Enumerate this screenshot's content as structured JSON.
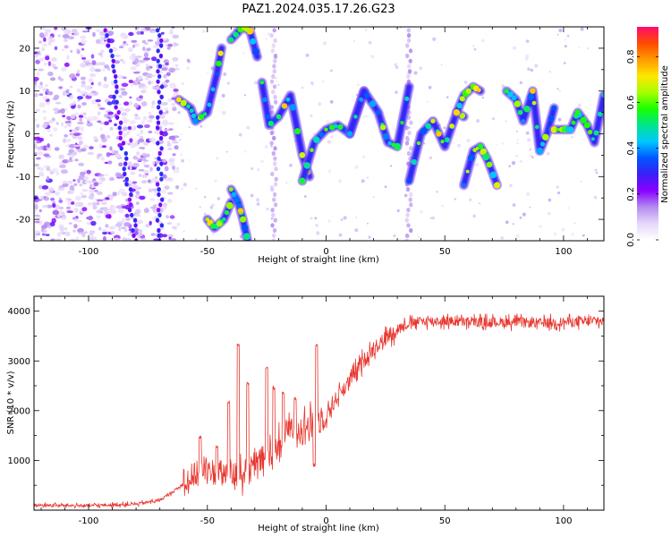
{
  "title": "PAZ1.2024.035.17.26.G23",
  "chart_data": [
    {
      "type": "heatmap",
      "xlabel": "Height of straight line (km)",
      "ylabel": "Frequency (Hz)",
      "xlim": [
        -123,
        117
      ],
      "ylim": [
        -25,
        25
      ],
      "xticks": [
        -100,
        -50,
        0,
        50,
        100
      ],
      "xtick_labels": [
        "-100",
        "-50",
        "0",
        "50",
        "100"
      ],
      "yticks": [
        -20,
        -10,
        0,
        10,
        20
      ],
      "ytick_labels": [
        "-20",
        "-10",
        "0",
        "10",
        "20"
      ],
      "colorbar": {
        "label": "Normalized spectral amplitude",
        "range": [
          0,
          0.93
        ],
        "ticks": [
          0.0,
          0.2,
          0.4,
          0.6,
          0.8
        ],
        "tick_labels": [
          "0.0",
          "0.2",
          "0.4",
          "0.6",
          "0.8"
        ],
        "colormap": [
          "#ffffff",
          "#e6d7fa",
          "#b28cf0",
          "#8a00ff",
          "#3a1ff5",
          "#0057ff",
          "#00c8ff",
          "#00e68c",
          "#19ff00",
          "#a6ff00",
          "#ffe600",
          "#ff9a00",
          "#ff4b00",
          "#ff0a6e"
        ]
      },
      "ridges": [
        {
          "x": [
            -62,
            -57,
            -55,
            -50,
            -46,
            -44
          ],
          "y": [
            8,
            6,
            3,
            5,
            14,
            20
          ]
        },
        {
          "x": [
            -40,
            -35,
            -32,
            -29
          ],
          "y": [
            22,
            25,
            24,
            18
          ]
        },
        {
          "x": [
            -27,
            -24,
            -20,
            -15,
            -10,
            -7
          ],
          "y": [
            12,
            2,
            4,
            9,
            -5,
            -10
          ]
        },
        {
          "x": [
            -10,
            -5,
            0,
            5,
            10,
            16
          ],
          "y": [
            -11,
            -2,
            1,
            2,
            0,
            10
          ]
        },
        {
          "x": [
            10,
            16,
            22,
            26,
            30,
            35
          ],
          "y": [
            0,
            10,
            5,
            -2,
            -3,
            11
          ]
        },
        {
          "x": [
            35,
            40,
            45,
            50,
            55,
            58
          ],
          "y": [
            -11,
            0,
            3,
            -3,
            5,
            4
          ]
        },
        {
          "x": [
            58,
            62,
            65,
            68,
            72
          ],
          "y": [
            -12,
            -4,
            -3,
            -6,
            -12
          ]
        },
        {
          "x": [
            55,
            58,
            62,
            65
          ],
          "y": [
            5,
            9,
            11,
            10
          ]
        },
        {
          "x": [
            76,
            80,
            83,
            87,
            90,
            93,
            96
          ],
          "y": [
            10,
            8,
            3,
            10,
            -4,
            0,
            6
          ]
        },
        {
          "x": [
            96,
            100,
            103,
            106,
            110,
            113,
            117
          ],
          "y": [
            1,
            1,
            1,
            5,
            2,
            -2,
            9
          ]
        },
        {
          "x": [
            -50,
            -47,
            -43,
            -40
          ],
          "y": [
            -20,
            -22,
            -20,
            -16
          ]
        },
        {
          "x": [
            -40,
            -37,
            -35,
            -33
          ],
          "y": [
            -13,
            -16,
            -20,
            -25
          ]
        }
      ]
    },
    {
      "type": "line",
      "xlabel": "Height of straight line (km)",
      "ylabel": "SNR (10 * v/v)",
      "xlim": [
        -123,
        117
      ],
      "ylim": [
        0,
        4300
      ],
      "xticks": [
        -100,
        -50,
        0,
        50,
        100
      ],
      "xtick_labels": [
        "-100",
        "-50",
        "0",
        "50",
        "100"
      ],
      "yticks": [
        1000,
        2000,
        3000,
        4000
      ],
      "ytick_labels": [
        "1000",
        "2000",
        "3000",
        "4000"
      ],
      "color": "#e8372f",
      "envelope": {
        "x": [
          -123,
          -100,
          -80,
          -70,
          -62,
          -56,
          -50,
          -45,
          -40,
          -35,
          -30,
          -25,
          -20,
          -15,
          -10,
          -5,
          0,
          5,
          10,
          15,
          20,
          25,
          30,
          35,
          40,
          50,
          60,
          70,
          80,
          90,
          100,
          110,
          117
        ],
        "y": [
          100,
          90,
          120,
          200,
          450,
          700,
          800,
          750,
          700,
          750,
          900,
          1100,
          1300,
          1600,
          1700,
          1700,
          1900,
          2300,
          2600,
          2950,
          3250,
          3450,
          3650,
          3750,
          3800,
          3800,
          3780,
          3780,
          3780,
          3760,
          3780,
          3790,
          3800
        ]
      },
      "spikes": [
        {
          "x": -53,
          "y": 1500
        },
        {
          "x": -46,
          "y": 1300
        },
        {
          "x": -41,
          "y": 2200
        },
        {
          "x": -37,
          "y": 3350
        },
        {
          "x": -33,
          "y": 2600
        },
        {
          "x": -25,
          "y": 2900
        },
        {
          "x": -22,
          "y": 2500
        },
        {
          "x": -18,
          "y": 2400
        },
        {
          "x": -13,
          "y": 2300
        },
        {
          "x": -4,
          "y": 3350
        },
        {
          "x": -5,
          "y": 950
        }
      ]
    }
  ]
}
